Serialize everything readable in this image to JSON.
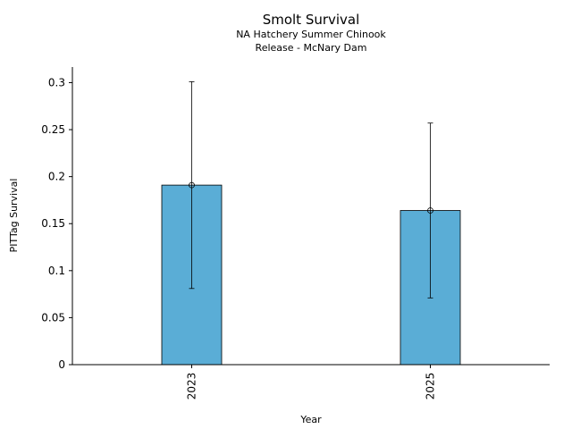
{
  "chart_data": {
    "type": "bar",
    "title": "Smolt Survival",
    "subtitle_lines": [
      "NA Hatchery Summer Chinook",
      "Release - McNary Dam"
    ],
    "xlabel": "Year",
    "ylabel": "PITTag Survival",
    "categories": [
      "2023",
      "2025"
    ],
    "values": [
      0.191,
      0.164
    ],
    "error_low": [
      0.081,
      0.071
    ],
    "error_high": [
      0.301,
      0.257
    ],
    "ylim": [
      0,
      0.3166
    ],
    "yticks": [
      0,
      0.05,
      0.1,
      0.15,
      0.2,
      0.25,
      0.3
    ],
    "ytick_labels": [
      "0",
      "0.05",
      "0.1",
      "0.15",
      "0.2",
      "0.25",
      "0.3"
    ],
    "grid": false,
    "bar_color": "#5aadd6"
  }
}
